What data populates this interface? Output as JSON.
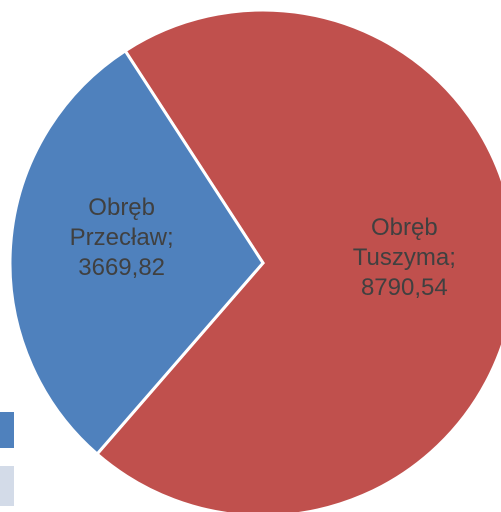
{
  "chart_data": {
    "type": "pie",
    "categories": [
      "Obręb Przecław",
      "Obręb Tuszyma"
    ],
    "values": [
      3669.82,
      8790.54
    ],
    "value_labels": [
      "3669,82",
      "8790,54"
    ],
    "label_separator": ";",
    "colors": [
      "#4f81bd",
      "#c0504d"
    ]
  }
}
